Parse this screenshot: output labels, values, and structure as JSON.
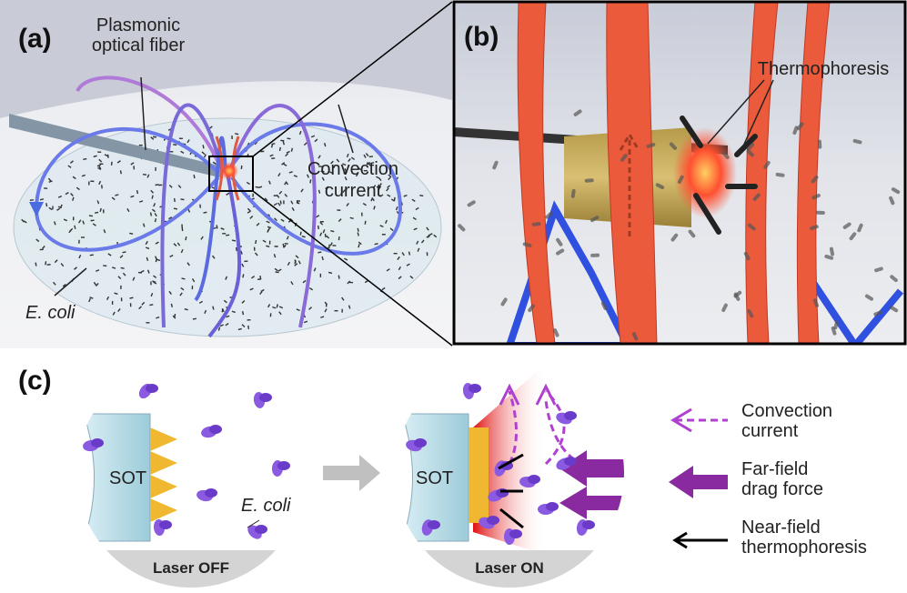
{
  "panel_a": {
    "label": "(a)",
    "fiber_label": [
      "Plasmonic",
      "optical fiber"
    ],
    "convection_label": [
      "Convection",
      "current"
    ],
    "ecoli_label": "E. coli"
  },
  "panel_b": {
    "label": "(b)",
    "thermophoresis_label": "Thermophoresis"
  },
  "panel_c": {
    "label": "(c)",
    "left": {
      "sot": "SOT",
      "ecoli": "E. coli",
      "caption": "Laser OFF"
    },
    "right": {
      "sot": "SOT",
      "caption": "Laser ON"
    },
    "legend": [
      {
        "lines": [
          "Convection",
          "current"
        ]
      },
      {
        "lines": [
          "Far-field",
          "drag force"
        ]
      },
      {
        "lines": [
          "Near-field",
          "thermophoresis"
        ]
      }
    ]
  }
}
